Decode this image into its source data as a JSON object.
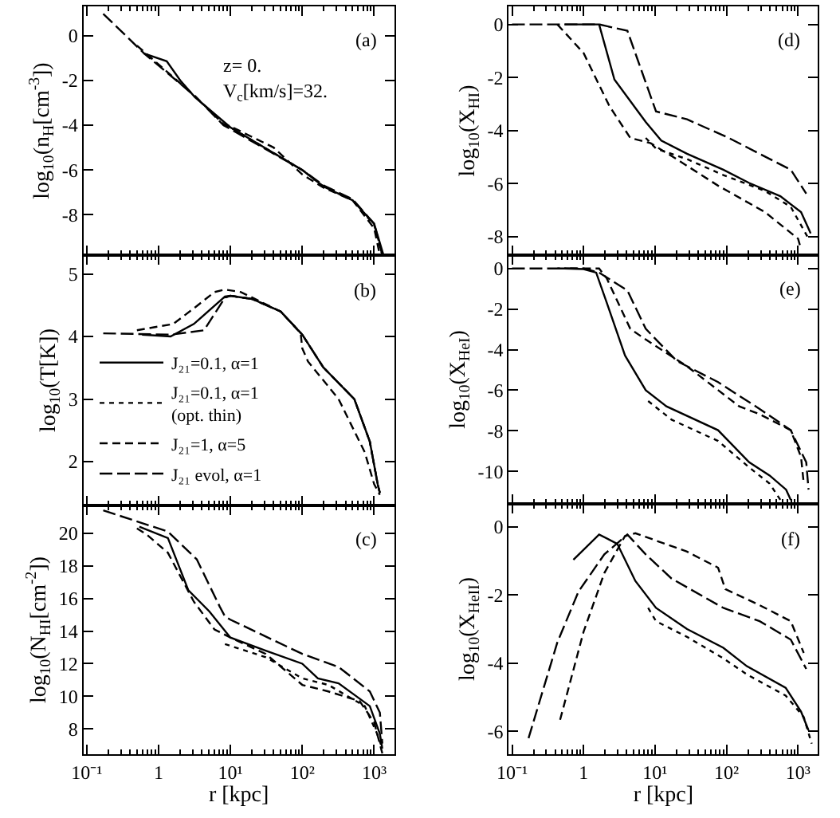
{
  "chart_data": [
    {
      "type": "line",
      "ylabel": "log$_{10}$(n$_{H}$[cm$^{-3}$])",
      "log": "x",
      "tick_labels": "y",
      "xlim": [
        0.09,
        1900
      ],
      "xticks": [
        {
          "value": 0.1,
          "label": null
        },
        {
          "value": 1,
          "label": null
        },
        {
          "value": 10,
          "label": null
        },
        {
          "value": 100,
          "label": null
        },
        {
          "value": 1000,
          "label": null
        }
      ],
      "ylim": [
        -9.8,
        1.3
      ],
      "yticks": [
        -8,
        -6,
        -4,
        -2,
        0
      ],
      "annotations": [
        "(a)",
        "z= 0.",
        "V$_{c}$[km/s]=32."
      ],
      "series": [
        {
          "color": "#000000",
          "line_style": "solid",
          "x": [
            0.63,
            1.3,
            2,
            3.2,
            10,
            100,
            200,
            500,
            1000,
            1350
          ],
          "values": [
            -0.8,
            -1.15,
            -2.0,
            -2.75,
            -4.1,
            -6.0,
            -6.75,
            -7.35,
            -8.4,
            -9.8
          ]
        },
        {
          "color": "#000000",
          "line_style": "dotted",
          "x": [
            8,
            10,
            100,
            200,
            500,
            1000,
            1300
          ],
          "values": [
            -4.0,
            -4.1,
            -6.0,
            -6.75,
            -7.35,
            -8.45,
            -9.8
          ]
        },
        {
          "color": "#000000",
          "line_style": "dashed",
          "x": [
            0.5,
            3.2,
            8,
            10,
            40,
            100,
            200,
            500,
            1000,
            1200
          ],
          "values": [
            -0.45,
            -2.7,
            -3.95,
            -4.05,
            -5.0,
            -6.2,
            -6.8,
            -7.35,
            -8.6,
            -9.8
          ]
        },
        {
          "color": "#000000",
          "line_style": "longdash",
          "x": [
            0.17,
            0.63,
            3.2,
            8,
            100,
            200,
            500,
            1000,
            1300
          ],
          "values": [
            0.97,
            -0.8,
            -2.7,
            -4.0,
            -6.0,
            -6.7,
            -7.3,
            -8.4,
            -9.8
          ]
        }
      ]
    },
    {
      "type": "line",
      "ylabel": "log$_{10}$(X$_{HI}$)",
      "log": "x",
      "tick_labels": "y",
      "xlim": [
        0.09,
        1900
      ],
      "xticks": [
        {
          "value": 0.1,
          "label": null
        },
        {
          "value": 1,
          "label": null
        },
        {
          "value": 10,
          "label": null
        },
        {
          "value": 100,
          "label": null
        },
        {
          "value": 1000,
          "label": null
        }
      ],
      "ylim": [
        -8.7,
        0.68
      ],
      "yticks": [
        -8,
        -6,
        -4,
        -2,
        0
      ],
      "annotations": [
        "(d)"
      ],
      "series": [
        {
          "color": "#000000",
          "line_style": "solid",
          "x": [
            0.54,
            1.65,
            2.7,
            7.4,
            12.2,
            28,
            90,
            207,
            565,
            1100,
            1500
          ],
          "values": [
            0,
            0,
            -2.08,
            -3.68,
            -4.38,
            -4.88,
            -5.48,
            -5.98,
            -6.48,
            -7.08,
            -7.88
          ]
        },
        {
          "color": "#000000",
          "line_style": "dotted",
          "x": [
            7.4,
            10.3,
            28,
            90,
            345,
            790,
            1400
          ],
          "values": [
            -4.28,
            -4.68,
            -5.08,
            -5.68,
            -6.28,
            -6.88,
            -8.08
          ]
        },
        {
          "color": "#000000",
          "line_style": "dashed",
          "x": [
            0.43,
            1,
            2.3,
            4.5,
            8.7,
            20,
            76,
            345,
            1000,
            1100
          ],
          "values": [
            0,
            -1.08,
            -3.08,
            -4.28,
            -4.48,
            -5.08,
            -6.08,
            -7.08,
            -8.08,
            -8.48
          ]
        },
        {
          "color": "#000000",
          "line_style": "longdash",
          "x": [
            0.1,
            1.65,
            4.1,
            10.3,
            28,
            107,
            290,
            790,
            1300
          ],
          "values": [
            0,
            0,
            -0.24,
            -3.28,
            -3.58,
            -4.28,
            -4.88,
            -5.48,
            -6.38
          ]
        }
      ]
    },
    {
      "type": "line",
      "ylabel": "log$_{10}$(T[K])",
      "log": "x",
      "tick_labels": "y",
      "legend": "bottom left",
      "xlim": [
        0.09,
        1900
      ],
      "xticks": [
        {
          "value": 0.1,
          "label": null
        },
        {
          "value": 1,
          "label": null
        },
        {
          "value": 10,
          "label": null
        },
        {
          "value": 100,
          "label": null
        },
        {
          "value": 1000,
          "label": null
        }
      ],
      "ylim": [
        1.3,
        5.3
      ],
      "yticks": [
        2,
        3,
        4,
        5
      ],
      "annotations": [
        "(b)"
      ],
      "series": [
        {
          "name": "J₂₁=0.1, α=1",
          "color": "#000000",
          "line_style": "solid",
          "x": [
            0.59,
            1.47,
            3.1,
            8.4,
            10,
            20,
            50,
            100,
            195,
            530,
            870,
            1120,
            1200
          ],
          "values": [
            4.03,
            4.0,
            4.2,
            4.64,
            4.65,
            4.6,
            4.4,
            4.03,
            3.51,
            3.0,
            2.32,
            1.64,
            1.5
          ]
        },
        {
          "name": "J₂₁=0.1, α=1\n(opt. thin)",
          "color": "#000000",
          "line_style": "dotted",
          "x": [
            8,
            10,
            20,
            50,
            100,
            195,
            530,
            870,
            1120,
            1200
          ],
          "values": [
            4.62,
            4.65,
            4.6,
            4.4,
            4.03,
            3.51,
            3.0,
            2.32,
            1.64,
            1.5
          ]
        },
        {
          "name": "J₂₁=1, α=5",
          "color": "#000000",
          "line_style": "dashed",
          "x": [
            0.5,
            1.6,
            3.1,
            6,
            8.4,
            14,
            50,
            95,
            100,
            120,
            320,
            740,
            1000,
            1200
          ],
          "values": [
            4.1,
            4.2,
            4.45,
            4.71,
            4.75,
            4.71,
            4.4,
            4.05,
            3.81,
            3.6,
            3.0,
            2.15,
            1.64,
            1.47
          ]
        },
        {
          "name": "J₂₁ evol, α=1",
          "color": "#000000",
          "line_style": "longdash",
          "x": [
            0.17,
            1.5,
            4.3,
            8.4,
            10,
            20,
            50,
            100,
            195,
            530,
            870,
            1120,
            1200
          ],
          "values": [
            4.05,
            4.03,
            4.1,
            4.62,
            4.65,
            4.6,
            4.4,
            4.03,
            3.51,
            3.0,
            2.32,
            1.64,
            1.5
          ]
        }
      ]
    },
    {
      "type": "line",
      "ylabel": "log$_{10}$(X$_{HeI}$)",
      "log": "x",
      "tick_labels": "y",
      "xlim": [
        0.09,
        1900
      ],
      "xticks": [
        {
          "value": 0.1,
          "label": null
        },
        {
          "value": 1,
          "label": null
        },
        {
          "value": 10,
          "label": null
        },
        {
          "value": 100,
          "label": null
        },
        {
          "value": 1000,
          "label": null
        }
      ],
      "ylim": [
        -11.6,
        0.66
      ],
      "yticks": [
        -10,
        -8,
        -6,
        -4,
        -2,
        0
      ],
      "annotations": [
        "(e)"
      ],
      "series": [
        {
          "color": "#000000",
          "line_style": "solid",
          "x": [
            0.54,
            1,
            1.5,
            2.1,
            3.8,
            7.4,
            14.4,
            76,
            207,
            400,
            680,
            790
          ],
          "values": [
            0,
            -0.03,
            -0.2,
            -1.66,
            -4.29,
            -6.0,
            -6.79,
            -7.97,
            -9.55,
            -10.2,
            -10.9,
            -11.4
          ]
        },
        {
          "color": "#000000",
          "line_style": "dotted",
          "x": [
            8,
            17,
            76,
            207,
            400,
            565
          ],
          "values": [
            -6.53,
            -7.45,
            -8.5,
            -9.8,
            -10.6,
            -11.4
          ]
        },
        {
          "color": "#000000",
          "line_style": "dashed",
          "x": [
            0.43,
            1.65,
            2.1,
            4.5,
            7.4,
            28,
            150,
            290,
            790,
            1100,
            1200
          ],
          "values": [
            0,
            0,
            -0.47,
            -2.97,
            -3.5,
            -4.82,
            -6.79,
            -7.18,
            -7.97,
            -9.29,
            -10.6
          ]
        },
        {
          "color": "#000000",
          "line_style": "longdash",
          "x": [
            0.1,
            1,
            1.65,
            4.1,
            7.4,
            20,
            76,
            290,
            790,
            1300,
            1400
          ],
          "values": [
            0,
            0,
            -0.2,
            -1.08,
            -2.97,
            -4.55,
            -5.6,
            -6.92,
            -7.97,
            -9.55,
            -10.9
          ]
        }
      ]
    },
    {
      "type": "line",
      "xlabel": "r [kpc]",
      "ylabel": "log$_{10}$(N$_{HI}$[cm$^{-2}$])",
      "log": "x",
      "xlim": [
        0.09,
        1900
      ],
      "xticks": [
        {
          "value": 0.1,
          "label": "10⁻¹"
        },
        1,
        {
          "value": 10,
          "label": "10¹"
        },
        {
          "value": 100,
          "label": "10²"
        },
        {
          "value": 1000,
          "label": "10³"
        }
      ],
      "ylim": [
        6.45,
        21.7
      ],
      "yticks": [
        8,
        10,
        12,
        14,
        16,
        18,
        20
      ],
      "annotations": [
        "(c)"
      ],
      "series": [
        {
          "color": "#000000",
          "line_style": "solid",
          "x": [
            0.54,
            1.35,
            2.6,
            5.1,
            10,
            31,
            100,
            165,
            320,
            870,
            1200,
            1300
          ],
          "values": [
            20.4,
            19.7,
            16.5,
            15.2,
            13.6,
            12.8,
            12.0,
            11.1,
            10.8,
            9.4,
            7.7,
            6.8
          ]
        },
        {
          "color": "#000000",
          "line_style": "dotted",
          "x": [
            8.4,
            31,
            100,
            230,
            740,
            1100,
            1300
          ],
          "values": [
            13.2,
            12.4,
            11.1,
            10.7,
            9.4,
            7.7,
            6.8
          ]
        },
        {
          "color": "#000000",
          "line_style": "dashed",
          "x": [
            0.5,
            0.69,
            1.35,
            3.1,
            6,
            10,
            31,
            100,
            230,
            630,
            1000,
            1300
          ],
          "values": [
            20.3,
            19.9,
            18.8,
            15.8,
            14.1,
            13.6,
            12.6,
            10.7,
            10.3,
            9.7,
            8.4,
            6.5
          ]
        },
        {
          "color": "#000000",
          "line_style": "longdash",
          "x": [
            0.17,
            1.35,
            3.4,
            7.1,
            8.4,
            10,
            100,
            320,
            870,
            1200,
            1300
          ],
          "values": [
            21.4,
            20.1,
            18.4,
            15.5,
            14.9,
            14.7,
            12.6,
            11.8,
            10.3,
            9.0,
            7.1
          ]
        }
      ]
    },
    {
      "type": "line",
      "xlabel": "r [kpc]",
      "ylabel": "log$_{10}$(X$_{HeII}$)",
      "log": "x",
      "xlim": [
        0.09,
        1900
      ],
      "xticks": [
        {
          "value": 0.1,
          "label": "10⁻¹"
        },
        1,
        {
          "value": 10,
          "label": "10¹"
        },
        {
          "value": 100,
          "label": "10²"
        },
        {
          "value": 1000,
          "label": "10³"
        }
      ],
      "ylim": [
        -6.67,
        0.67
      ],
      "yticks": [
        -6,
        -4,
        -2,
        0
      ],
      "annotations": [
        "(f)"
      ],
      "series": [
        {
          "color": "#000000",
          "line_style": "solid",
          "x": [
            0.72,
            1.65,
            2.96,
            5.3,
            10.3,
            28,
            90,
            192,
            670,
            1100,
            1400
          ],
          "values": [
            -0.97,
            -0.23,
            -0.5,
            -1.59,
            -2.38,
            -3.0,
            -3.55,
            -4.09,
            -4.72,
            -5.42,
            -5.97
          ]
        },
        {
          "color": "#000000",
          "line_style": "dotted",
          "x": [
            8,
            10.3,
            28,
            90,
            192,
            670,
            1200,
            1550
          ],
          "values": [
            -2.38,
            -2.77,
            -3.23,
            -3.86,
            -4.33,
            -4.95,
            -5.58,
            -6.36
          ]
        },
        {
          "color": "#000000",
          "line_style": "dashed",
          "x": [
            0.47,
            1,
            1.95,
            3.8,
            5.3,
            28,
            76,
            96,
            290,
            790,
            1200
          ],
          "values": [
            -5.66,
            -3.08,
            -1.36,
            -0.27,
            -0.19,
            -0.73,
            -1.2,
            -1.83,
            -2.3,
            -2.77,
            -3.7
          ]
        },
        {
          "color": "#000000",
          "line_style": "longdash",
          "x": [
            0.17,
            0.43,
            0.85,
            1.95,
            4.1,
            7.4,
            17,
            90,
            290,
            790,
            1300
          ],
          "values": [
            -6.2,
            -3.39,
            -1.9,
            -0.81,
            -0.23,
            -0.81,
            -1.52,
            -2.38,
            -2.77,
            -3.31,
            -4.17
          ]
        }
      ]
    }
  ]
}
